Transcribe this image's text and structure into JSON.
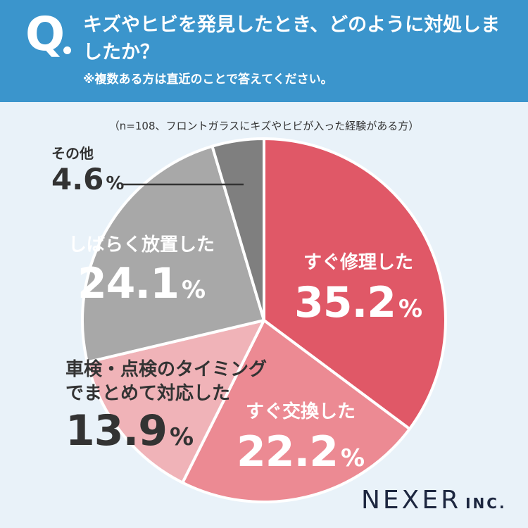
{
  "header": {
    "q_mark": "Q",
    "title": "キズやヒビを発見したとき、どのように対処しましたか？",
    "note": "※複数ある方は直近のことで答えてください。"
  },
  "sample_note": "（n=108、フロントガラスにキズやヒビが入った経験がある方）",
  "brand": {
    "name": "NEXER",
    "suffix": "INC."
  },
  "colors": {
    "header_bg": "#3b95cc",
    "background": "#e9f2f9",
    "slice_1": "#e05867",
    "slice_2": "#ec8a93",
    "slice_3": "#f0b3b8",
    "slice_4": "#a8a8a8",
    "slice_5": "#7f7f7f"
  },
  "chart_data": {
    "type": "pie",
    "start": "12 o'clock, clockwise",
    "slices": [
      {
        "label": "すぐ修理した",
        "value": 35.2,
        "display": "35.2",
        "unit": "%"
      },
      {
        "label": "すぐ交換した",
        "value": 22.2,
        "display": "22.2",
        "unit": "%"
      },
      {
        "label": "車検・点検のタイミングでまとめて対応した",
        "label_lines": [
          "車検・点検のタイミング",
          "でまとめて対応した"
        ],
        "value": 13.9,
        "display": "13.9",
        "unit": "%"
      },
      {
        "label": "しばらく放置した",
        "value": 24.1,
        "display": "24.1",
        "unit": "%"
      },
      {
        "label": "その他",
        "value": 4.6,
        "display": "4.6",
        "unit": "%"
      }
    ]
  }
}
